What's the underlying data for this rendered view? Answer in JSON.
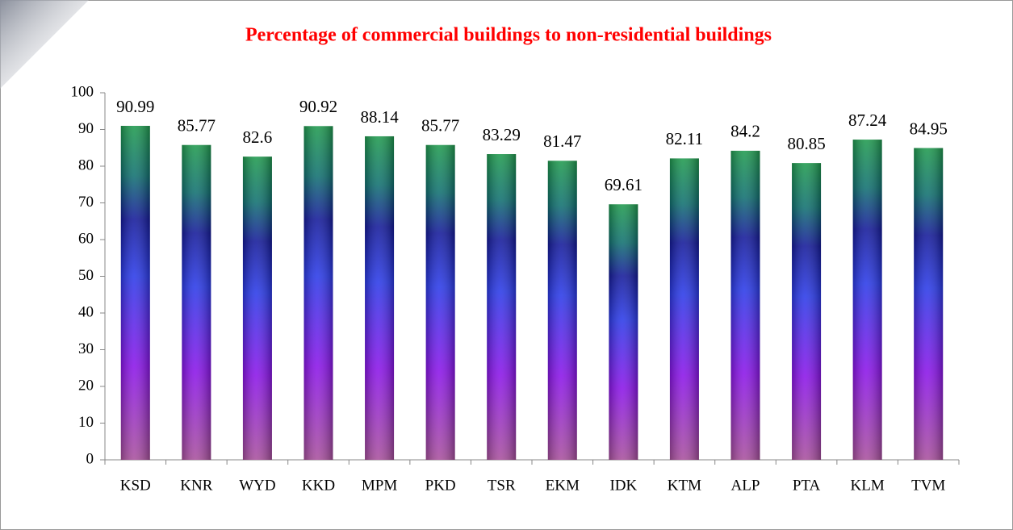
{
  "chart_data": {
    "type": "bar",
    "title": "Percentage of commercial buildings to  non-residential buildings",
    "categories": [
      "KSD",
      "KNR",
      "WYD",
      "KKD",
      "MPM",
      "PKD",
      "TSR",
      "EKM",
      "IDK",
      "KTM",
      "ALP",
      "PTA",
      "KLM",
      "TVM"
    ],
    "values": [
      90.99,
      85.77,
      82.6,
      90.92,
      88.14,
      85.77,
      83.29,
      81.47,
      69.61,
      82.11,
      84.2,
      80.85,
      87.24,
      84.95
    ],
    "ylim": [
      0,
      100
    ],
    "yticks": [
      0,
      10,
      20,
      30,
      40,
      50,
      60,
      70,
      80,
      90,
      100
    ]
  }
}
